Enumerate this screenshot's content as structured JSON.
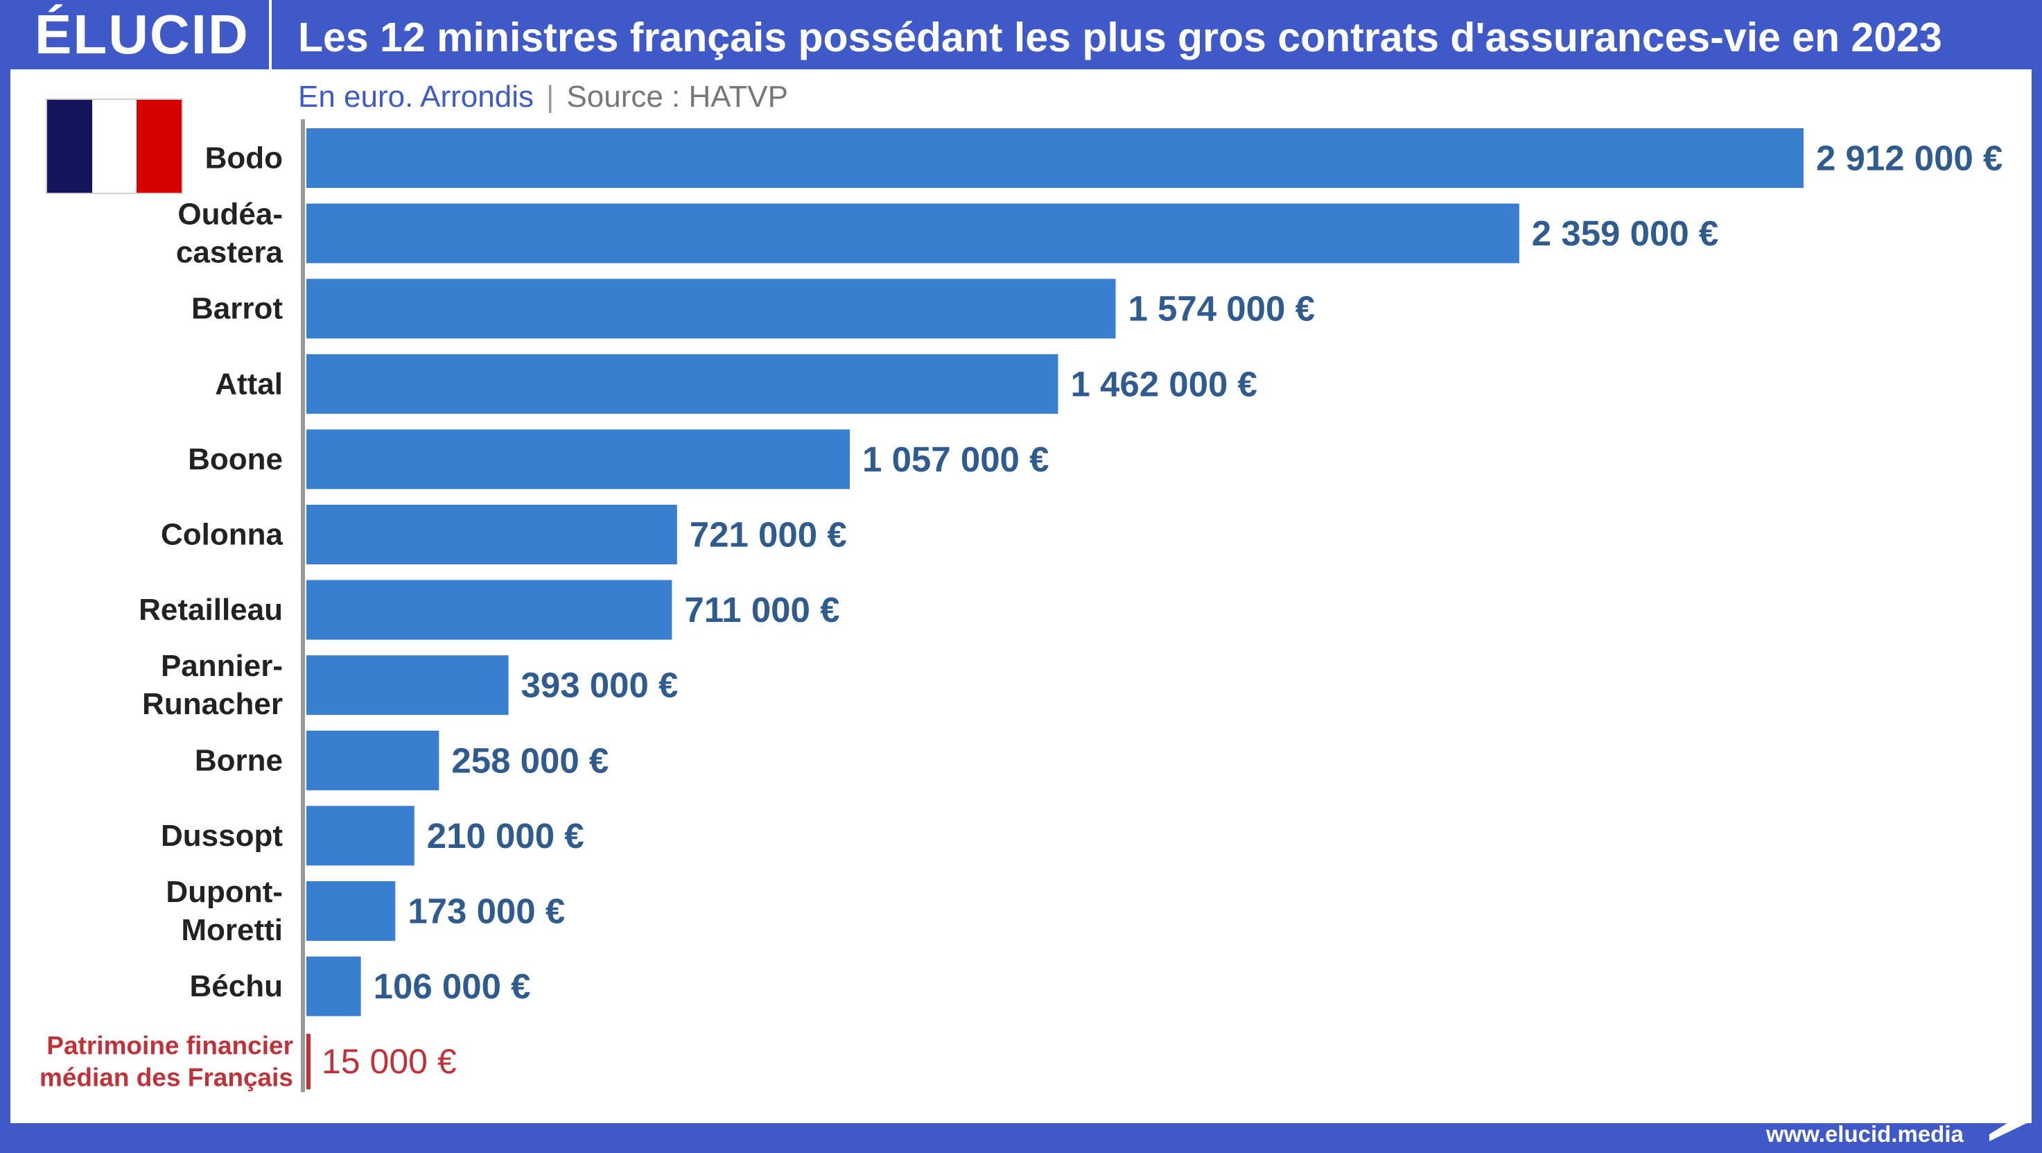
{
  "header": {
    "logo": "ÉLUCID",
    "title": "Les 12 ministres français possédant les plus gros contrats d'assurances-vie en 2023"
  },
  "subheader": {
    "unit": "En euro. Arrondis",
    "separator": "|",
    "source": "Source : HATVP"
  },
  "footer": {
    "url": "www.elucid.media"
  },
  "icons": {
    "flag": "france-flag-icon",
    "footer_mark": "elucid-mark-icon"
  },
  "colors": {
    "bar": "#3a7ecf",
    "value_text": "#2f5b8e",
    "highlight": "#c0323a",
    "label_text": "#222222",
    "background": "#3f59c8"
  },
  "chart_data": {
    "type": "bar",
    "orientation": "horizontal",
    "title": "Les 12 ministres français possédant les plus gros contrats d'assurances-vie en 2023",
    "subtitle": "En euro. Arrondis",
    "xlabel": "",
    "ylabel": "",
    "categories": [
      "Bodo",
      "Oudéa-castera",
      "Barrot",
      "Attal",
      "Boone",
      "Colonna",
      "Retailleau",
      "Pannier-Runacher",
      "Borne",
      "Dussopt",
      "Dupont-Moretti",
      "Béchu",
      "Patrimoine financier médian des Français"
    ],
    "category_lines": [
      [
        "Bodo"
      ],
      [
        "Oudéa-",
        "castera"
      ],
      [
        "Barrot"
      ],
      [
        "Attal"
      ],
      [
        "Boone"
      ],
      [
        "Colonna"
      ],
      [
        "Retailleau"
      ],
      [
        "Pannier-",
        "Runacher"
      ],
      [
        "Borne"
      ],
      [
        "Dussopt"
      ],
      [
        "Dupont-",
        "Moretti"
      ],
      [
        "Béchu"
      ],
      [
        "Patrimoine financier",
        "médian des Français"
      ]
    ],
    "values": [
      2912000,
      2359000,
      1574000,
      1462000,
      1057000,
      721000,
      711000,
      393000,
      258000,
      210000,
      173000,
      106000,
      15000
    ],
    "value_labels": [
      "2 912 000 €",
      "2 359 000 €",
      "1 574 000 €",
      "1 462 000 €",
      "1 057 000 €",
      "721 000 €",
      "711 000 €",
      "393 000 €",
      "258 000 €",
      "210 000 €",
      "173 000 €",
      "106 000 €",
      "15 000 €"
    ],
    "highlighted": [
      false,
      false,
      false,
      false,
      false,
      false,
      false,
      false,
      false,
      false,
      false,
      false,
      true
    ],
    "xlim": [
      0,
      2912000
    ],
    "grid": false,
    "legend": "none"
  }
}
